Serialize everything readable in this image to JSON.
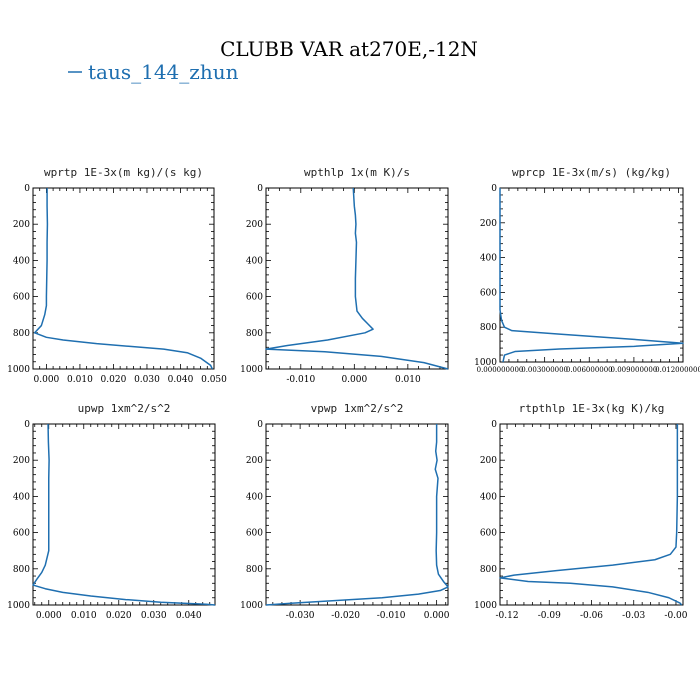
{
  "title": "CLUBB VAR at270E,-12N",
  "legend": {
    "label": "taus_144_zhun",
    "color": "#1f6fb0"
  },
  "chart_data": [
    {
      "type": "line",
      "title": "wprtp  1E-3x(m kg)/(s kg)",
      "xlim": [
        -0.004,
        0.05
      ],
      "ylim": [
        0,
        1000
      ],
      "y_inverted": true,
      "xticks": [
        0.0,
        0.01,
        0.02,
        0.03,
        0.04,
        0.05
      ],
      "xtick_labels": [
        "0.000",
        "0.010",
        "0.020",
        "0.030",
        "0.040",
        "0.050"
      ],
      "yticks": [
        0,
        200,
        400,
        600,
        800,
        1000
      ],
      "series": [
        {
          "color": "#1f6fb0",
          "points": [
            [
              0.0002,
              0
            ],
            [
              0.0002,
              100
            ],
            [
              0.0003,
              200
            ],
            [
              0.0002,
              300
            ],
            [
              0.0002,
              400
            ],
            [
              0.0001,
              500
            ],
            [
              0.0,
              600
            ],
            [
              0.0,
              650
            ],
            [
              -0.0005,
              700
            ],
            [
              -0.0015,
              760
            ],
            [
              -0.0035,
              800
            ],
            [
              0.0,
              825
            ],
            [
              0.005,
              840
            ],
            [
              0.015,
              860
            ],
            [
              0.025,
              875
            ],
            [
              0.035,
              890
            ],
            [
              0.042,
              910
            ],
            [
              0.046,
              940
            ],
            [
              0.049,
              980
            ],
            [
              0.0495,
              1000
            ]
          ]
        }
      ]
    },
    {
      "type": "line",
      "title": "wpthlp  1x(m K)/s",
      "xlim": [
        -0.0165,
        0.0175
      ],
      "ylim": [
        0,
        1000
      ],
      "y_inverted": true,
      "xticks": [
        -0.01,
        0.0,
        0.01
      ],
      "xtick_labels": [
        "-0.010",
        "0.000",
        "0.010"
      ],
      "yticks": [
        0,
        200,
        400,
        600,
        800,
        1000
      ],
      "series": [
        {
          "color": "#1f6fb0",
          "points": [
            [
              -0.0002,
              0
            ],
            [
              0.0,
              100
            ],
            [
              0.0002,
              150
            ],
            [
              0.0003,
              200
            ],
            [
              0.0002,
              250
            ],
            [
              0.0004,
              300
            ],
            [
              0.0003,
              400
            ],
            [
              0.0002,
              500
            ],
            [
              0.0002,
              600
            ],
            [
              0.0005,
              680
            ],
            [
              0.0015,
              720
            ],
            [
              0.0025,
              750
            ],
            [
              0.0035,
              780
            ],
            [
              0.002,
              800
            ],
            [
              -0.005,
              840
            ],
            [
              -0.0125,
              870
            ],
            [
              -0.0165,
              890
            ],
            [
              -0.0055,
              905
            ],
            [
              0.005,
              930
            ],
            [
              0.013,
              965
            ],
            [
              0.0175,
              1000
            ]
          ]
        }
      ]
    },
    {
      "type": "line",
      "title": "wprcp  1E-3x(m/s) (kg/kg)",
      "xlim": [
        0.0,
        0.0123
      ],
      "ylim": [
        0,
        1000
      ],
      "y_inverted": true,
      "xticks": [
        0.0,
        0.003,
        0.006,
        0.009,
        0.012
      ],
      "xtick_labels": [
        "0.000000000",
        "0.003000000",
        "0.006000000",
        "0.009000000",
        "0.012000000"
      ],
      "yticks": [
        0,
        200,
        400,
        600,
        800,
        1000
      ],
      "series": [
        {
          "color": "#1f6fb0",
          "points": [
            [
              0.0,
              0
            ],
            [
              0.0,
              700
            ],
            [
              0.0001,
              760
            ],
            [
              0.0003,
              800
            ],
            [
              0.0008,
              820
            ],
            [
              0.004,
              840
            ],
            [
              0.009,
              870
            ],
            [
              0.0123,
              892
            ],
            [
              0.009,
              910
            ],
            [
              0.004,
              925
            ],
            [
              0.001,
              940
            ],
            [
              0.0003,
              960
            ],
            [
              0.0002,
              1000
            ]
          ]
        }
      ]
    },
    {
      "type": "line",
      "title": "upwp  1xm^2/s^2",
      "xlim": [
        -0.0045,
        0.0475
      ],
      "ylim": [
        0,
        1000
      ],
      "y_inverted": true,
      "xticks": [
        0.0,
        0.01,
        0.02,
        0.03,
        0.04
      ],
      "xtick_labels": [
        "0.000",
        "0.010",
        "0.020",
        "0.030",
        "0.040"
      ],
      "yticks": [
        0,
        200,
        400,
        600,
        800,
        1000
      ],
      "series": [
        {
          "color": "#1f6fb0",
          "points": [
            [
              -0.0002,
              0
            ],
            [
              -0.0001,
              100
            ],
            [
              0.0001,
              200
            ],
            [
              0.0,
              300
            ],
            [
              0.0,
              400
            ],
            [
              0.0,
              500
            ],
            [
              0.0,
              600
            ],
            [
              0.0,
              700
            ],
            [
              -0.0005,
              740
            ],
            [
              -0.001,
              780
            ],
            [
              -0.002,
              820
            ],
            [
              -0.0035,
              860
            ],
            [
              -0.0045,
              890
            ],
            [
              -0.001,
              910
            ],
            [
              0.004,
              930
            ],
            [
              0.012,
              950
            ],
            [
              0.022,
              970
            ],
            [
              0.032,
              985
            ],
            [
              0.045,
              996
            ],
            [
              0.0475,
              1000
            ]
          ]
        }
      ]
    },
    {
      "type": "line",
      "title": "vpwp  1xm^2/s^2",
      "xlim": [
        -0.0375,
        0.0025
      ],
      "ylim": [
        0,
        1000
      ],
      "y_inverted": true,
      "xticks": [
        -0.03,
        -0.02,
        -0.01,
        0.0
      ],
      "xtick_labels": [
        "-0.030",
        "-0.020",
        "-0.010",
        "0.000"
      ],
      "yticks": [
        0,
        200,
        400,
        600,
        800,
        1000
      ],
      "series": [
        {
          "color": "#1f6fb0",
          "points": [
            [
              0.0,
              0
            ],
            [
              0.0,
              100
            ],
            [
              -0.0002,
              150
            ],
            [
              0.0001,
              200
            ],
            [
              -0.0003,
              250
            ],
            [
              0.0003,
              300
            ],
            [
              0.0,
              400
            ],
            [
              0.0,
              500
            ],
            [
              0.0,
              600
            ],
            [
              -0.0001,
              700
            ],
            [
              0.0,
              780
            ],
            [
              0.0004,
              830
            ],
            [
              0.0015,
              870
            ],
            [
              0.0025,
              900
            ],
            [
              0.0008,
              920
            ],
            [
              -0.004,
              940
            ],
            [
              -0.012,
              960
            ],
            [
              -0.022,
              975
            ],
            [
              -0.032,
              990
            ],
            [
              -0.0375,
              1000
            ]
          ]
        }
      ]
    },
    {
      "type": "line",
      "title": "rtpthlp  1E-3x(kg K)/kg",
      "xlim": [
        -0.125,
        0.005
      ],
      "ylim": [
        0,
        1000
      ],
      "y_inverted": true,
      "xticks": [
        -0.12,
        -0.09,
        -0.06,
        -0.03,
        0.0
      ],
      "xtick_labels": [
        "-0.12",
        "-0.09",
        "-0.06",
        "-0.03",
        "-0.00"
      ],
      "yticks": [
        0,
        200,
        400,
        600,
        800,
        1000
      ],
      "series": [
        {
          "color": "#1f6fb0",
          "points": [
            [
              0.001,
              0
            ],
            [
              0.001,
              200
            ],
            [
              0.001,
              400
            ],
            [
              0.0005,
              600
            ],
            [
              0.0,
              680
            ],
            [
              -0.004,
              720
            ],
            [
              -0.015,
              750
            ],
            [
              -0.045,
              780
            ],
            [
              -0.085,
              810
            ],
            [
              -0.115,
              835
            ],
            [
              -0.125,
              850
            ],
            [
              -0.105,
              870
            ],
            [
              -0.075,
              880
            ],
            [
              -0.045,
              900
            ],
            [
              -0.02,
              930
            ],
            [
              -0.005,
              960
            ],
            [
              0.003,
              990
            ],
            [
              0.004,
              1000
            ]
          ]
        }
      ]
    }
  ]
}
